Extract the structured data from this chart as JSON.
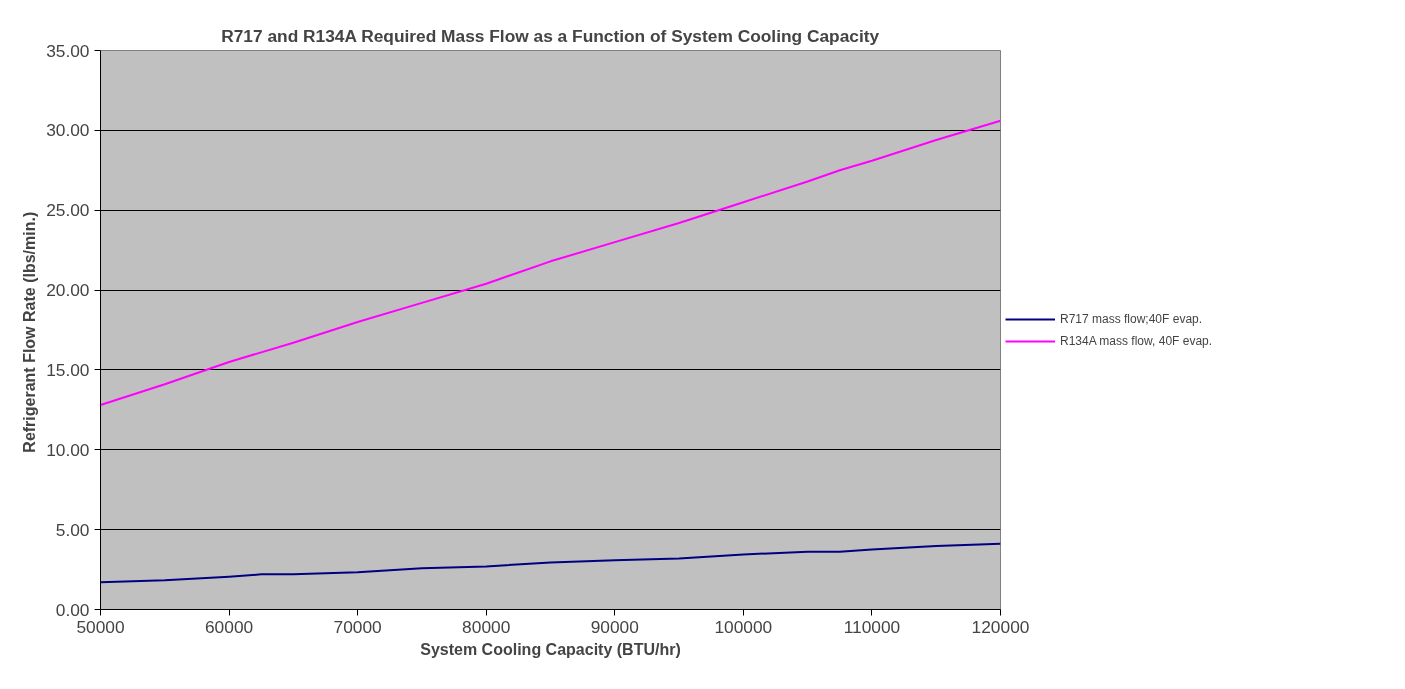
{
  "chart_data": {
    "type": "line",
    "title": "R717 and R134A Required Mass Flow as a Function of System Cooling Capacity",
    "xlabel": "System Cooling Capacity (BTU/hr)",
    "ylabel": "Refrigerant Flow Rate  (lbs/min.)",
    "x": [
      50000,
      55000,
      60000,
      62500,
      65000,
      70000,
      75000,
      80000,
      85000,
      90000,
      95000,
      100000,
      105000,
      107500,
      110000,
      115000,
      120000
    ],
    "series": [
      {
        "name": "R717 mass flow;40F evap.",
        "color": "#000080",
        "values": [
          1.7,
          1.83,
          2.05,
          2.2,
          2.2,
          2.33,
          2.58,
          2.7,
          2.95,
          3.08,
          3.2,
          3.45,
          3.61,
          3.61,
          3.75,
          3.98,
          4.11
        ]
      },
      {
        "name": "R134A mass flow, 40F evap.",
        "color": "#ff00ff",
        "values": [
          12.8,
          14.1,
          15.5,
          16.1,
          16.7,
          18.0,
          19.2,
          20.4,
          21.8,
          23.0,
          24.2,
          25.5,
          26.8,
          27.5,
          28.1,
          29.4,
          30.6
        ]
      }
    ],
    "xlim": [
      50000,
      120000
    ],
    "xticks": [
      50000,
      60000,
      70000,
      80000,
      90000,
      100000,
      110000,
      120000
    ],
    "ylim": [
      0,
      35
    ],
    "yticks": [
      {
        "value": 0,
        "label": "0.00"
      },
      {
        "value": 5,
        "label": "5.00"
      },
      {
        "value": 10,
        "label": "10.00"
      },
      {
        "value": 15,
        "label": "15.00"
      },
      {
        "value": 20,
        "label": "20.00"
      },
      {
        "value": 25,
        "label": "25.00"
      },
      {
        "value": 30,
        "label": "30.00"
      },
      {
        "value": 35,
        "label": "35.00"
      }
    ],
    "grid": "y",
    "legend": "right",
    "marker": "none",
    "line_style": "solid"
  }
}
